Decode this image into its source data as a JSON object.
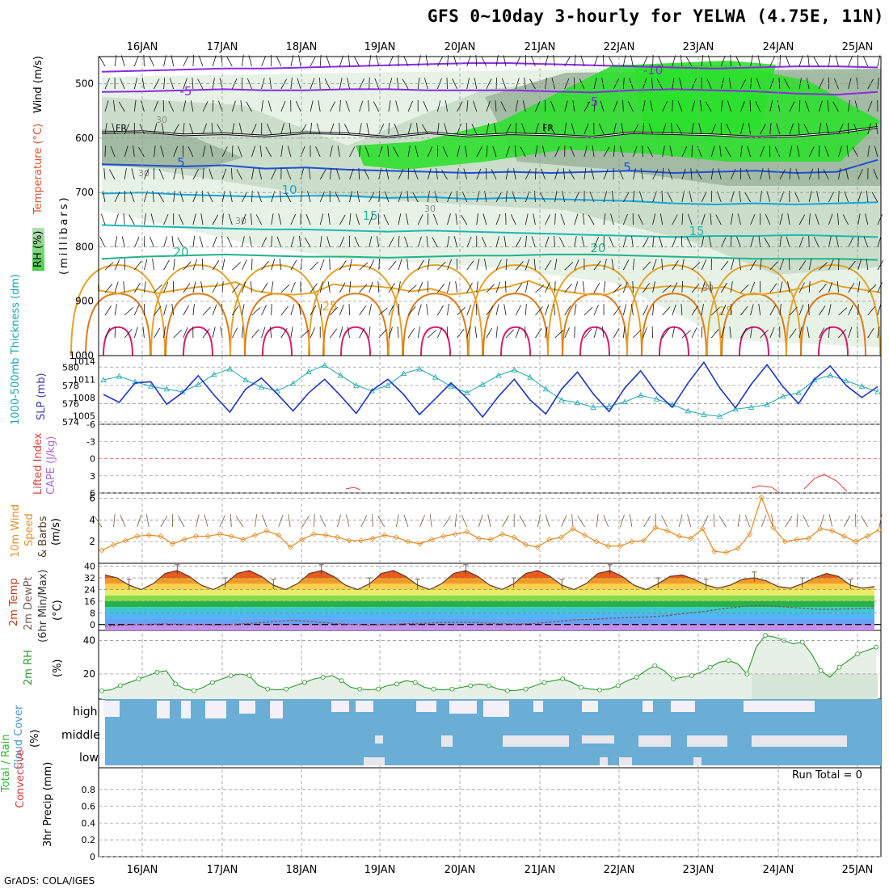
{
  "header": {
    "title": "GFS 0~10day 3-hourly for YELWA (4.75E, 11N)"
  },
  "footer": {
    "credit": "GrADS: COLA/IGES"
  },
  "days": [
    "16JAN",
    "17JAN",
    "18JAN",
    "19JAN",
    "20JAN",
    "21JAN",
    "22JAN",
    "23JAN",
    "24JAN",
    "25JAN"
  ],
  "colors": {
    "rh_light": "#e4f1e4",
    "rh_mid": "#c8dcc8",
    "rh_dark": "#9fb69f",
    "rh_green": "#2ee02e",
    "temp_purple": "#8a2be2",
    "temp_blue": "#1f4fd6",
    "temp_cyan": "#16a6d8",
    "temp_teal": "#1fb8b0",
    "temp_green": "#22b38a",
    "temp_orange": "#e4a32b",
    "temp_darkorange": "#e07a18",
    "temp_magenta": "#d81a72",
    "thickness": "#1aa8b0",
    "slp": "#1f34c8",
    "wind10m": "#e3902c",
    "barb10m": "#7a5a3c",
    "temp2m": "#e04a10",
    "dewpt": "#7a5a5a",
    "rh2m": "#2a9a2a",
    "cloud": "#6aaed6",
    "cloud_gap": "#f3f0f7"
  },
  "chart_data": [
    {
      "panel": "upper-air",
      "type": "heatmap",
      "ylabel": "(millibars)",
      "side_labels": [
        "Wind (m/s)",
        "Temperature (°C)",
        "RH (%)"
      ],
      "y_ticks": [
        500,
        600,
        700,
        800,
        900,
        1000
      ],
      "ylim": [
        1000,
        450
      ],
      "x_ticks": [
        "16JAN",
        "17JAN",
        "18JAN",
        "19JAN",
        "20JAN",
        "21JAN",
        "22JAN",
        "23JAN",
        "24JAN",
        "25JAN"
      ],
      "contour_labels": [
        "-10",
        "-5",
        "-5",
        "FR",
        "FR",
        "5",
        "5",
        "10",
        "15",
        "15",
        "20",
        "20",
        "25",
        "25",
        "30",
        "30",
        "30",
        "30",
        "30"
      ],
      "isotherms": [
        {
          "temp": -10,
          "color": "#8a2be2",
          "pressure": [
            478,
            476,
            474,
            472,
            472,
            470,
            468,
            466,
            464,
            462,
            462,
            464,
            466,
            468,
            470,
            472,
            470,
            468,
            468,
            470
          ]
        },
        {
          "temp": -5,
          "color": "#8a2be2",
          "pressure": [
            515,
            514,
            512,
            510,
            512,
            512,
            510,
            510,
            512,
            512,
            512,
            514,
            516,
            512,
            510,
            512,
            514,
            518,
            520,
            515
          ]
        },
        {
          "temp": 0,
          "color": "#000000",
          "pressure": [
            590,
            588,
            594,
            592,
            596,
            590,
            592,
            598,
            590,
            596,
            592,
            594,
            598,
            590,
            592,
            594,
            598,
            596,
            590,
            580
          ]
        },
        {
          "temp": 5,
          "color": "#1f4fd6",
          "pressure": [
            648,
            650,
            652,
            650,
            656,
            654,
            658,
            660,
            662,
            664,
            662,
            664,
            662,
            660,
            664,
            662,
            660,
            664,
            662,
            640
          ]
        },
        {
          "temp": 10,
          "color": "#16a6d8",
          "pressure": [
            702,
            700,
            704,
            706,
            708,
            706,
            706,
            710,
            708,
            712,
            710,
            712,
            714,
            716,
            720,
            722,
            720,
            722,
            720,
            718
          ]
        },
        {
          "temp": 15,
          "color": "#1fb8b0",
          "pressure": [
            760,
            762,
            764,
            766,
            768,
            768,
            770,
            772,
            770,
            772,
            774,
            776,
            778,
            780,
            782,
            780,
            780,
            778,
            780,
            782
          ]
        },
        {
          "temp": 20,
          "color": "#22b38a",
          "pressure": [
            822,
            818,
            816,
            814,
            816,
            818,
            818,
            820,
            818,
            816,
            816,
            814,
            814,
            816,
            818,
            820,
            822,
            822,
            822,
            824
          ]
        }
      ]
    },
    {
      "panel": "thickness-slp",
      "type": "line",
      "side_labels": [
        "1000-500mb Thickness (dm)",
        "SLP (mb)"
      ],
      "y_left_ticks": [
        574,
        576,
        578,
        580
      ],
      "y_right_ticks": [
        1005,
        1008,
        1011,
        1014
      ],
      "series": [
        {
          "name": "1000-500mb Thickness",
          "values": [
            578.6,
            579.0,
            578.4,
            577.9,
            577.6,
            577.3,
            578.1,
            579.2,
            579.8,
            578.6,
            577.8,
            577.4,
            578.2,
            579.5,
            580.2,
            579.1,
            578.0,
            577.4,
            578.0,
            579.3,
            579.8,
            578.9,
            577.9,
            577.2,
            578.1,
            579.1,
            579.7,
            578.9,
            577.6,
            576.4,
            576.1,
            575.6,
            575.7,
            576.2,
            576.9,
            576.5,
            575.9,
            575.2,
            574.8,
            574.6,
            575.4,
            575.6,
            575.9,
            576.8,
            577.2,
            578.6,
            579.1,
            578.5,
            577.9,
            577.3
          ]
        },
        {
          "name": "SLP",
          "values": [
            1008.5,
            1007.2,
            1010.4,
            1010.6,
            1006.9,
            1008.8,
            1011.6,
            1008.4,
            1005.6,
            1009.4,
            1011.2,
            1008.6,
            1005.8,
            1008.8,
            1011.0,
            1008.3,
            1005.4,
            1009.2,
            1011.0,
            1008.5,
            1005.2,
            1007.8,
            1010.4,
            1007.9,
            1004.8,
            1008.2,
            1011.0,
            1007.6,
            1005.3,
            1009.4,
            1012.2,
            1008.6,
            1005.7,
            1009.6,
            1012.4,
            1008.8,
            1006.4,
            1010.4,
            1013.8,
            1009.6,
            1006.3,
            1010.2,
            1013.4,
            1009.8,
            1007.0,
            1011.0,
            1013.2,
            1010.0,
            1008.0,
            1009.8
          ]
        }
      ]
    },
    {
      "panel": "stability",
      "type": "line",
      "side_labels": [
        "Lifted Index",
        "CAPE (J/kg)"
      ],
      "y_ticks": [
        "-6",
        "-3",
        "0",
        "3",
        "6"
      ],
      "series": [
        {
          "name": "Lifted Index",
          "values": []
        },
        {
          "name": "CAPE (J/kg)",
          "values": []
        }
      ]
    },
    {
      "panel": "wind10m",
      "type": "line",
      "side_labels": [
        "10m Wind",
        "Speed",
        "& Barbs",
        "(m/s)"
      ],
      "y_ticks": [
        2,
        4,
        6
      ],
      "ylim": [
        0,
        6.5
      ],
      "series": [
        {
          "name": "10m Wind Speed",
          "values": [
            1.2,
            1.7,
            2.1,
            2.5,
            2.6,
            2.5,
            1.8,
            2.2,
            2.5,
            2.5,
            2.7,
            2.5,
            2.2,
            2.6,
            3.0,
            2.6,
            1.5,
            2.2,
            2.7,
            2.6,
            2.4,
            2.1,
            2.1,
            2.3,
            2.6,
            2.4,
            2.0,
            1.8,
            2.2,
            2.5,
            2.7,
            2.9,
            2.3,
            2.2,
            2.7,
            2.4,
            1.7,
            1.5,
            2.2,
            2.4,
            3.2,
            2.6,
            2.0,
            1.6,
            1.6,
            2.0,
            2.1,
            3.3,
            3.0,
            2.5,
            2.3,
            3.2,
            1.1,
            1.0,
            1.4,
            2.7,
            6.1,
            3.3,
            2.0,
            2.2,
            2.3,
            3.2,
            3.0,
            2.5,
            2.0,
            2.5,
            3.1
          ]
        }
      ]
    },
    {
      "panel": "temp2m",
      "type": "area",
      "side_labels": [
        "2m Temp",
        "2m DewPt",
        "(6hr Min/Max)",
        "(°C)"
      ],
      "y_ticks": [
        0,
        8,
        16,
        24,
        32,
        40
      ],
      "ylim": [
        -4,
        42
      ],
      "series": [
        {
          "name": "2m Temp",
          "values": [
            34,
            32,
            27,
            24,
            28,
            35,
            37,
            33,
            27,
            24,
            28,
            35,
            37,
            33,
            27,
            24,
            28,
            35,
            37,
            33,
            27,
            24,
            28,
            35,
            37,
            33,
            27,
            24,
            28,
            35,
            37,
            33,
            27,
            24,
            28,
            35,
            37,
            33,
            27,
            24,
            28,
            35,
            37,
            33,
            27,
            24,
            28,
            33,
            34,
            31,
            27,
            25,
            27,
            31,
            32,
            30,
            26,
            25,
            28,
            32,
            35,
            33,
            27,
            25,
            26
          ]
        },
        {
          "name": "2m DewPt",
          "values": [
            -1,
            -0.5,
            0,
            0.5,
            0.2,
            0,
            -0.5,
            0.3,
            1,
            2,
            3,
            2,
            1,
            0.2,
            -0.5,
            0,
            0.6,
            0.8,
            1.4,
            1.6,
            1.2,
            0.6,
            0.4,
            0.8,
            2,
            3.2,
            3.6,
            4.3,
            4.8,
            5.2,
            6.2,
            7.8,
            9,
            11,
            12.4,
            13.2,
            12.3,
            11.4,
            10.6,
            10.6,
            10.9,
            11.4
          ]
        }
      ]
    },
    {
      "panel": "rh2m",
      "type": "line",
      "side_labels": [
        "2m RH",
        "(%)"
      ],
      "y_ticks": [
        20,
        40
      ],
      "ylim": [
        5,
        46
      ],
      "series": [
        {
          "name": "2m RH",
          "values": [
            10,
            10.5,
            13,
            15,
            17,
            19,
            21,
            22,
            14,
            11,
            10,
            12,
            15,
            17,
            19,
            20,
            19,
            13,
            11,
            10.5,
            11,
            13,
            15,
            17,
            18,
            19,
            16,
            12,
            11,
            10.5,
            11,
            13,
            14,
            16,
            15,
            12,
            11,
            10.5,
            11,
            12,
            13,
            14,
            13,
            11,
            10,
            10.2,
            11,
            13,
            15,
            16,
            17,
            15,
            12,
            11,
            10.5,
            11,
            13,
            16,
            18,
            22,
            25,
            22,
            17,
            18,
            19,
            21,
            24,
            27,
            28,
            26,
            20,
            36,
            43,
            42,
            40,
            38,
            39,
            32,
            22,
            18,
            24,
            28,
            32,
            34,
            36
          ]
        }
      ]
    },
    {
      "panel": "cloud",
      "type": "table",
      "side_labels": [
        "Cloud Cover",
        "(%)"
      ],
      "levels": [
        "high",
        "middle",
        "low"
      ]
    },
    {
      "panel": "precip",
      "type": "bar",
      "side_labels": [
        "Total / Rain",
        "Convective",
        "3hr Precip (mm)"
      ],
      "y_ticks": [
        "0",
        "0.2",
        "0.4",
        "0.6",
        "0.8"
      ],
      "ylim": [
        0,
        1
      ],
      "series": [
        {
          "name": "3hr Precip",
          "values": []
        }
      ],
      "annotation": "Run Total = 0"
    }
  ]
}
